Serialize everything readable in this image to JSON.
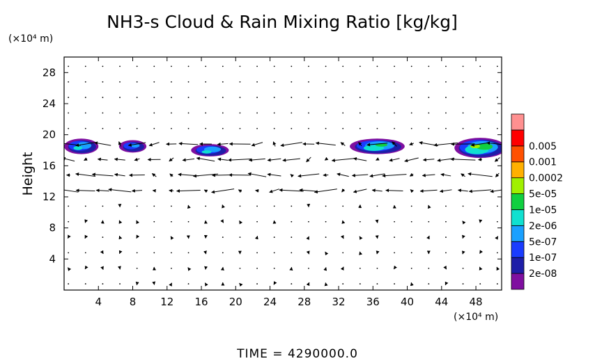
{
  "chart_data": {
    "type": "heatmap",
    "title": "NH3-s Cloud & Rain Mixing Ratio [kg/kg]",
    "ylabel": "Height",
    "x_unit_label": "(×10⁴ m)",
    "y_unit_label": "(×10⁴ m)",
    "xlim": [
      0,
      51
    ],
    "ylim": [
      0,
      30
    ],
    "x_ticks": [
      4,
      8,
      12,
      16,
      20,
      24,
      28,
      32,
      36,
      40,
      44,
      48
    ],
    "y_ticks": [
      4,
      8,
      12,
      16,
      20,
      24,
      28
    ],
    "colorbar": {
      "levels": [
        "2e-08",
        "1e-07",
        "5e-07",
        "2e-06",
        "1e-05",
        "5e-05",
        "0.0002",
        "0.001",
        "0.005"
      ],
      "colors": [
        "#7f0fa0",
        "#1e1ea8",
        "#1a3cff",
        "#1aa0ff",
        "#10e0d0",
        "#10d040",
        "#a0f000",
        "#ffb000",
        "#ff5000",
        "#ff0000",
        "#ff9090"
      ]
    },
    "cloud_regions": [
      {
        "x_center": 2.0,
        "y_center": 18.5,
        "x_halfwidth": 2.0,
        "y_halfwidth": 1.0,
        "peak_level": 4
      },
      {
        "x_center": 8.0,
        "y_center": 18.5,
        "x_halfwidth": 1.6,
        "y_halfwidth": 0.8,
        "peak_level": 3
      },
      {
        "x_center": 17.0,
        "y_center": 18.0,
        "x_halfwidth": 2.2,
        "y_halfwidth": 0.8,
        "peak_level": 4
      },
      {
        "x_center": 36.5,
        "y_center": 18.5,
        "x_halfwidth": 3.2,
        "y_halfwidth": 1.0,
        "peak_level": 5
      },
      {
        "x_center": 48.5,
        "y_center": 18.3,
        "x_halfwidth": 3.0,
        "y_halfwidth": 1.3,
        "peak_level": 6
      }
    ],
    "wind_bands": [
      {
        "y_min": 11,
        "y_max": 20.5,
        "direction": "westward",
        "strength": "strong"
      }
    ]
  },
  "footer": {
    "time_label": "TIME = 4290000.0"
  }
}
